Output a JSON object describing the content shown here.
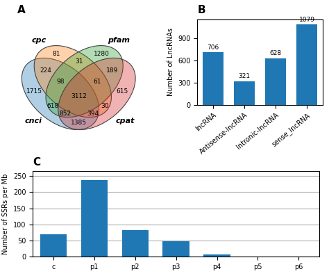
{
  "chart_data": [
    {
      "type": "venn",
      "title": "A",
      "sets": [
        "cnci",
        "cpc",
        "pfam",
        "cpat"
      ],
      "regions": [
        {
          "sets": [
            "cnci"
          ],
          "value": 1715
        },
        {
          "sets": [
            "cnci",
            "cpc"
          ],
          "value": 224
        },
        {
          "sets": [
            "cpc"
          ],
          "value": 81
        },
        {
          "sets": [
            "pfam"
          ],
          "value": 1280
        },
        {
          "sets": [
            "pfam",
            "cpat"
          ],
          "value": 189
        },
        {
          "sets": [
            "cpat"
          ],
          "value": 615
        },
        {
          "sets": [
            "cnci",
            "cpc",
            "pfam"
          ],
          "value": 98
        },
        {
          "sets": [
            "cpc",
            "pfam"
          ],
          "value": 31
        },
        {
          "sets": [
            "cpc",
            "pfam",
            "cpat"
          ],
          "value": 61
        },
        {
          "sets": [
            "cnci",
            "pfam"
          ],
          "value": 618
        },
        {
          "sets": [
            "cnci",
            "pfam",
            "cpat"
          ],
          "value": 852
        },
        {
          "sets": [
            "cnci",
            "cpc",
            "pfam",
            "cpat"
          ],
          "value": 3112
        },
        {
          "sets": [
            "cnci",
            "cpc",
            "cpat"
          ],
          "value": 394
        },
        {
          "sets": [
            "cpc",
            "cpat"
          ],
          "value": 30
        },
        {
          "sets": [
            "cnci",
            "cpat"
          ],
          "value": 1385
        }
      ]
    },
    {
      "type": "bar",
      "title": "B",
      "categories": [
        "lncRNA",
        "Antisense-lncRNA",
        "Intronic-lncRNA",
        "sense_lncRNA"
      ],
      "values": [
        706,
        321,
        628,
        1079
      ],
      "ylabel": "Number of LncRNAs",
      "ylim": [
        0,
        1150
      ],
      "yticks": [
        0,
        300,
        600,
        900
      ],
      "data_labels": true,
      "grid": false
    },
    {
      "type": "bar",
      "title": "C",
      "categories": [
        "c",
        "p1",
        "p2",
        "p3",
        "p4",
        "p5",
        "p6"
      ],
      "values": [
        70,
        238,
        83,
        48,
        6,
        0.8,
        0.3
      ],
      "ylabel": "Number of SSRs per Mb",
      "ylim": [
        0,
        265
      ],
      "yticks": [
        0,
        50,
        100,
        150,
        200,
        250
      ],
      "grid": true
    }
  ]
}
